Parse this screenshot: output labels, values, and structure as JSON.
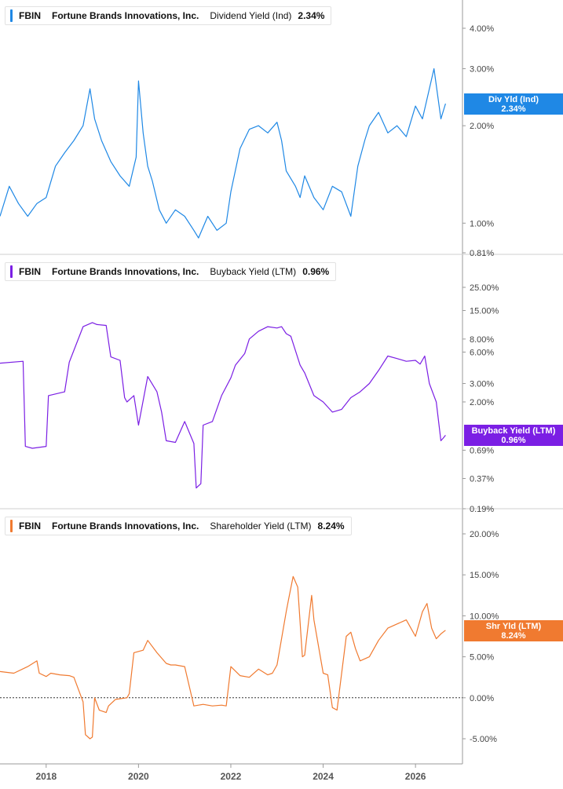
{
  "chart_data": [
    {
      "type": "line",
      "ticker": "FBIN",
      "company": "Fortune Brands Innovations, Inc.",
      "metric": "Dividend Yield (Ind)",
      "current_value": "2.34%",
      "tag_label": "Div Yld (Ind)",
      "tag_value": "2.34%",
      "color": "#1f88e5",
      "scale": "log",
      "ylim": [
        0.81,
        5.0
      ],
      "y_ticks": [
        0.81,
        1.0,
        2.0,
        3.0,
        4.0
      ],
      "y_tick_labels": [
        "0.81%",
        "1.00%",
        "2.00%",
        "3.00%",
        "4.00%"
      ],
      "series": [
        {
          "x": [
            2017.0,
            2017.2,
            2017.4,
            2017.6,
            2017.8,
            2018.0,
            2018.2,
            2018.4,
            2018.6,
            2018.8,
            2018.95,
            2019.05,
            2019.2,
            2019.4,
            2019.6,
            2019.8,
            2019.95,
            2020.0,
            2020.1,
            2020.2,
            2020.3,
            2020.45,
            2020.6,
            2020.8,
            2021.0,
            2021.2,
            2021.3,
            2021.5,
            2021.7,
            2021.9,
            2022.0,
            2022.2,
            2022.4,
            2022.6,
            2022.8,
            2023.0,
            2023.1,
            2023.2,
            2023.4,
            2023.5,
            2023.6,
            2023.8,
            2024.0,
            2024.2,
            2024.4,
            2024.6,
            2024.75,
            2024.9,
            2025.0,
            2025.2,
            2025.4,
            2025.6,
            2025.8,
            2026.0,
            2026.15,
            2026.3,
            2026.4,
            2026.55,
            2026.65
          ],
          "y": [
            1.05,
            1.3,
            1.15,
            1.05,
            1.15,
            1.2,
            1.5,
            1.65,
            1.8,
            2.0,
            2.6,
            2.1,
            1.8,
            1.55,
            1.4,
            1.3,
            1.6,
            2.75,
            1.9,
            1.5,
            1.35,
            1.1,
            1.0,
            1.1,
            1.05,
            0.95,
            0.9,
            1.05,
            0.95,
            1.0,
            1.25,
            1.7,
            1.95,
            2.0,
            1.9,
            2.05,
            1.8,
            1.45,
            1.3,
            1.2,
            1.4,
            1.2,
            1.1,
            1.3,
            1.25,
            1.05,
            1.5,
            1.8,
            2.0,
            2.2,
            1.9,
            2.0,
            1.85,
            2.3,
            2.1,
            2.6,
            3.0,
            2.1,
            2.34
          ]
        }
      ]
    },
    {
      "type": "line",
      "ticker": "FBIN",
      "company": "Fortune Brands Innovations, Inc.",
      "metric": "Buyback Yield (LTM)",
      "current_value": "0.96%",
      "tag_label": "Buyback Yield (LTM)",
      "tag_value": "0.96%",
      "color": "#7b1fe4",
      "scale": "log",
      "ylim": [
        0.19,
        30.0
      ],
      "y_ticks": [
        0.19,
        0.37,
        0.69,
        2.0,
        3.0,
        6.0,
        8.0,
        15.0,
        25.0
      ],
      "y_tick_labels": [
        "0.19%",
        "0.37%",
        "0.69%",
        "2.00%",
        "3.00%",
        "6.00%",
        "8.00%",
        "15.00%",
        "25.00%"
      ],
      "series": [
        {
          "x": [
            2017.0,
            2017.5,
            2017.55,
            2017.7,
            2018.0,
            2018.05,
            2018.4,
            2018.5,
            2018.8,
            2019.0,
            2019.1,
            2019.3,
            2019.4,
            2019.6,
            2019.7,
            2019.75,
            2019.9,
            2020.0,
            2020.2,
            2020.4,
            2020.5,
            2020.6,
            2020.8,
            2021.0,
            2021.2,
            2021.25,
            2021.35,
            2021.4,
            2021.6,
            2021.8,
            2022.0,
            2022.1,
            2022.3,
            2022.4,
            2022.6,
            2022.8,
            2023.0,
            2023.1,
            2023.2,
            2023.3,
            2023.5,
            2023.6,
            2023.8,
            2024.0,
            2024.2,
            2024.4,
            2024.6,
            2024.8,
            2025.0,
            2025.2,
            2025.4,
            2025.6,
            2025.8,
            2026.0,
            2026.1,
            2026.2,
            2026.3,
            2026.45,
            2026.55,
            2026.6,
            2026.65
          ],
          "y": [
            4.7,
            4.9,
            0.75,
            0.72,
            0.75,
            2.3,
            2.5,
            4.8,
            10.5,
            11.5,
            11.0,
            10.8,
            5.4,
            5.0,
            2.2,
            2.0,
            2.3,
            1.2,
            3.5,
            2.5,
            1.6,
            0.85,
            0.82,
            1.3,
            0.8,
            0.3,
            0.33,
            1.2,
            1.3,
            2.3,
            3.4,
            4.5,
            5.8,
            8.0,
            9.5,
            10.5,
            10.2,
            10.5,
            9.0,
            8.5,
            4.5,
            3.8,
            2.3,
            2.0,
            1.6,
            1.7,
            2.2,
            2.5,
            3.0,
            4.0,
            5.5,
            5.2,
            4.9,
            5.0,
            4.6,
            5.5,
            3.0,
            2.0,
            0.85,
            0.9,
            0.96
          ]
        }
      ]
    },
    {
      "type": "line",
      "ticker": "FBIN",
      "company": "Fortune Brands Innovations, Inc.",
      "metric": "Shareholder Yield (LTM)",
      "current_value": "8.24%",
      "tag_label": "Shr Yld (LTM)",
      "tag_value": "8.24%",
      "color": "#f07a30",
      "scale": "linear",
      "ylim": [
        -8.0,
        21.5
      ],
      "y_ticks": [
        -5.0,
        0.0,
        5.0,
        10.0,
        15.0,
        20.0
      ],
      "y_tick_labels": [
        "-5.00%",
        "0.00%",
        "5.00%",
        "10.00%",
        "15.00%",
        "20.00%"
      ],
      "zero_line": true,
      "series": [
        {
          "x": [
            2017.0,
            2017.3,
            2017.6,
            2017.8,
            2017.85,
            2018.0,
            2018.1,
            2018.3,
            2018.5,
            2018.6,
            2018.8,
            2018.85,
            2018.95,
            2019.0,
            2019.05,
            2019.15,
            2019.3,
            2019.35,
            2019.5,
            2019.75,
            2019.8,
            2019.9,
            2020.1,
            2020.2,
            2020.4,
            2020.6,
            2020.7,
            2020.8,
            2021.0,
            2021.2,
            2021.4,
            2021.6,
            2021.8,
            2021.9,
            2022.0,
            2022.2,
            2022.4,
            2022.6,
            2022.8,
            2022.9,
            2023.0,
            2023.2,
            2023.25,
            2023.35,
            2023.45,
            2023.55,
            2023.6,
            2023.75,
            2023.8,
            2024.0,
            2024.1,
            2024.2,
            2024.3,
            2024.5,
            2024.6,
            2024.7,
            2024.8,
            2025.0,
            2025.2,
            2025.4,
            2025.6,
            2025.8,
            2026.0,
            2026.15,
            2026.25,
            2026.35,
            2026.45,
            2026.55,
            2026.65
          ],
          "y": [
            3.2,
            3.0,
            3.8,
            4.5,
            3.0,
            2.6,
            3.0,
            2.8,
            2.7,
            2.5,
            -0.5,
            -4.5,
            -5.0,
            -4.8,
            0.0,
            -1.5,
            -1.8,
            -1.0,
            -0.2,
            0.0,
            0.5,
            5.5,
            5.8,
            7.0,
            5.5,
            4.2,
            4.0,
            4.0,
            3.8,
            -1.0,
            -0.8,
            -1.0,
            -0.9,
            -1.0,
            3.8,
            2.7,
            2.5,
            3.5,
            2.8,
            3.0,
            4.0,
            10.5,
            12.0,
            14.8,
            13.5,
            5.0,
            5.2,
            12.5,
            9.5,
            3.0,
            2.8,
            -1.2,
            -1.5,
            7.5,
            8.0,
            6.0,
            4.5,
            5.0,
            7.0,
            8.5,
            9.0,
            9.5,
            7.5,
            10.5,
            11.5,
            8.5,
            7.2,
            7.8,
            8.24
          ]
        }
      ]
    }
  ],
  "x_axis": {
    "ticks": [
      2018,
      2020,
      2022,
      2024,
      2026
    ],
    "tick_labels": [
      "2018",
      "2020",
      "2022",
      "2024",
      "2026"
    ],
    "range": [
      2017.0,
      2026.95
    ]
  }
}
